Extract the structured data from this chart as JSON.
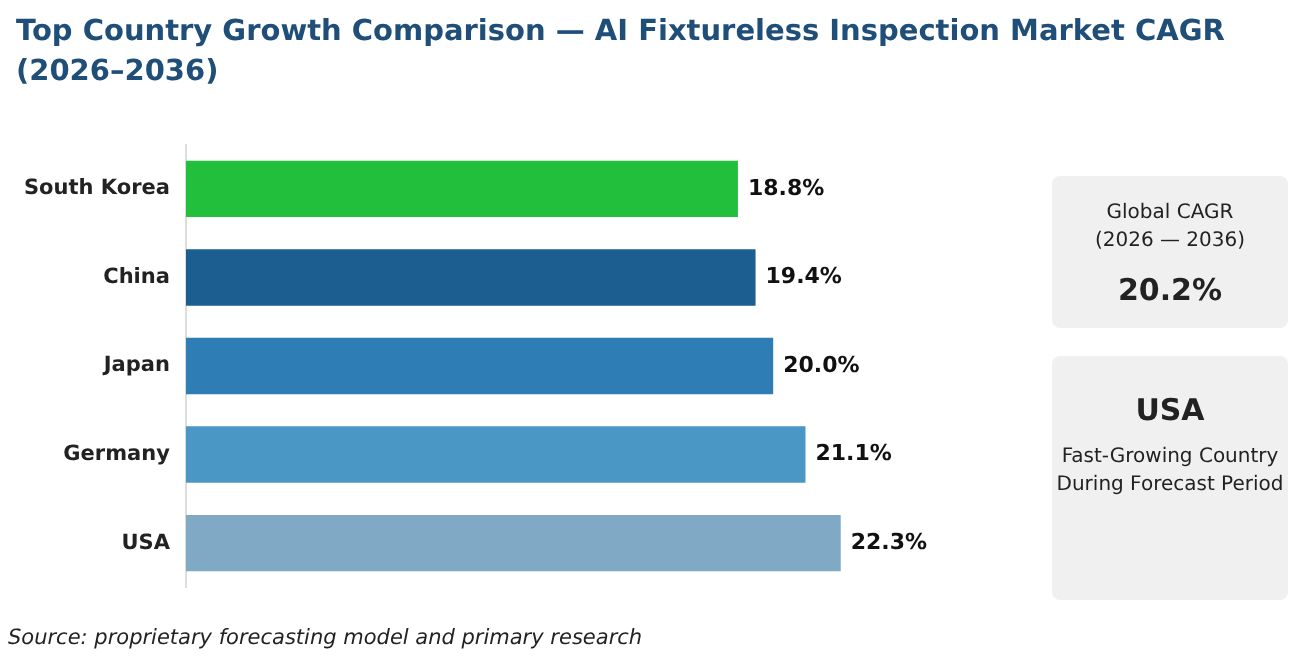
{
  "chart_data": {
    "type": "bar",
    "orientation": "horizontal",
    "title": "Top Country Growth Comparison — AI Fixtureless Inspection Market CAGR (2026–2036)",
    "categories": [
      "South Korea",
      "China",
      "Japan",
      "Germany",
      "USA"
    ],
    "values": [
      18.8,
      19.4,
      20.0,
      21.1,
      22.3
    ],
    "colors": [
      "#22bf3c",
      "#1b5e8f",
      "#2e7db4",
      "#4a97c6",
      "#7fa9c5"
    ],
    "value_labels": [
      "18.8%",
      "19.4%",
      "20.0%",
      "21.1%",
      "22.3%"
    ],
    "grid": false,
    "legend": false,
    "tick_labels": "y",
    "annotations": [
      "Global CAGR\n(2026 — 2036)",
      "20.2%",
      "USA",
      "Fast-Growing Country\nDuring Forecast Period",
      "Source: proprietary forecasting model and primary research"
    ]
  }
}
